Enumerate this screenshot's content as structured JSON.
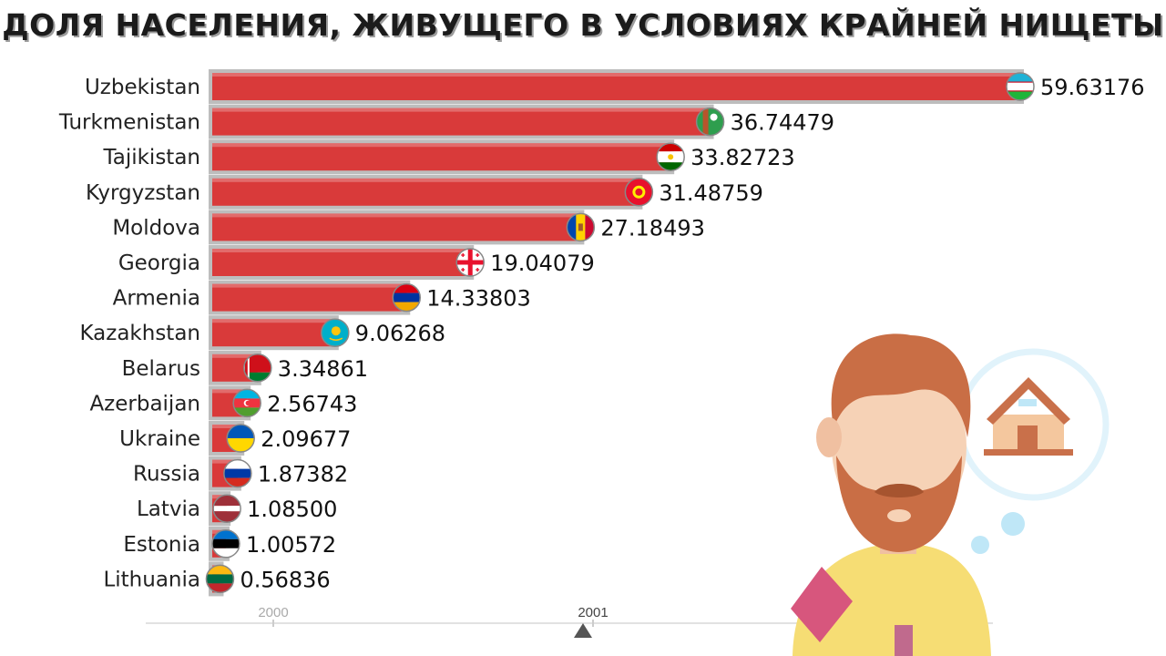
{
  "title": "ДОЛЯ НАСЕЛЕНИЯ, ЖИВУЩЕГО В УСЛОВИЯХ КРАЙНЕЙ НИЩЕТЫ",
  "chart_data": {
    "type": "bar",
    "orientation": "horizontal",
    "title": "ДОЛЯ НАСЕЛЕНИЯ, ЖИВУЩЕГО В УСЛОВИЯХ КРАЙНЕЙ НИЩЕТЫ",
    "categories": [
      "Uzbekistan",
      "Turkmenistan",
      "Tajikistan",
      "Kyrgyzstan",
      "Moldova",
      "Georgia",
      "Armenia",
      "Kazakhstan",
      "Belarus",
      "Azerbaijan",
      "Ukraine",
      "Russia",
      "Latvia",
      "Estonia",
      "Lithuania"
    ],
    "values": [
      59.63176,
      36.74479,
      33.82723,
      31.48759,
      27.18493,
      19.04079,
      14.33803,
      9.06268,
      3.34861,
      2.56743,
      2.09677,
      1.87382,
      1.085,
      1.00572,
      0.56836
    ],
    "value_labels": [
      "59.63176",
      "36.74479",
      "33.82723",
      "31.48759",
      "27.18493",
      "19.04079",
      "14.33803",
      "9.06268",
      "3.34861",
      "2.56743",
      "2.09677",
      "1.87382",
      "1.08500",
      "1.00572",
      "0.56836"
    ],
    "xlim": [
      0,
      59.63176
    ],
    "bar_color": "#d93a3a",
    "flags": [
      "uzbekistan-flag-icon",
      "turkmenistan-flag-icon",
      "tajikistan-flag-icon",
      "kyrgyzstan-flag-icon",
      "moldova-flag-icon",
      "georgia-flag-icon",
      "armenia-flag-icon",
      "kazakhstan-flag-icon",
      "belarus-flag-icon",
      "azerbaijan-flag-icon",
      "ukraine-flag-icon",
      "russia-flag-icon",
      "latvia-flag-icon",
      "estonia-flag-icon",
      "lithuania-flag-icon"
    ],
    "timeline": {
      "years": [
        "2000",
        "2001"
      ],
      "current": "2001"
    },
    "grid": false,
    "legend": "none"
  },
  "illustration": {
    "subject": "bearded-man-icon",
    "thought": "house-icon"
  }
}
